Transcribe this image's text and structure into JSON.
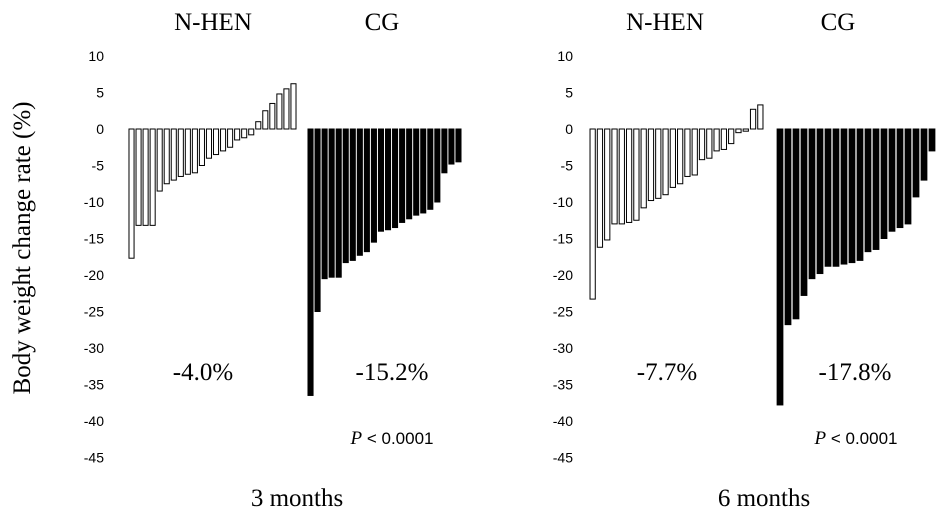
{
  "ylabel": "Body weight change rate (%)",
  "chart_data": [
    {
      "type": "bar",
      "xlabel": "3 months",
      "ylim": [
        -45,
        10
      ],
      "yticks": [
        10,
        5,
        0,
        -5,
        -10,
        -15,
        -20,
        -25,
        -30,
        -35,
        -40,
        -45
      ],
      "groups": [
        {
          "name": "N-HEN",
          "fill": "#ffffff",
          "stroke": "#000000",
          "mean_label": "-4.0%",
          "values": [
            -17.7,
            -13.2,
            -13.2,
            -13.2,
            -8.5,
            -7.5,
            -7.0,
            -6.5,
            -6.2,
            -6.0,
            -5.0,
            -4.0,
            -3.5,
            -3.0,
            -2.5,
            -1.5,
            -1.2,
            -0.8,
            1.0,
            2.5,
            3.5,
            4.8,
            5.5,
            6.2
          ]
        },
        {
          "name": "CG",
          "fill": "#000000",
          "stroke": "#000000",
          "mean_label": "-15.2%",
          "values": [
            -36.5,
            -25.0,
            -20.5,
            -20.3,
            -20.3,
            -18.3,
            -18.0,
            -17.3,
            -16.8,
            -15.5,
            -14.0,
            -13.8,
            -13.5,
            -12.8,
            -12.3,
            -11.8,
            -11.5,
            -11.0,
            -10.0,
            -6.0,
            -4.8,
            -4.5
          ]
        }
      ],
      "p_value": {
        "italic": "P",
        "text": " < 0.0001"
      }
    },
    {
      "type": "bar",
      "xlabel": "6 months",
      "ylim": [
        -45,
        10
      ],
      "yticks": [
        10,
        5,
        0,
        -5,
        -10,
        -15,
        -20,
        -25,
        -30,
        -35,
        -40,
        -45
      ],
      "groups": [
        {
          "name": "N-HEN",
          "fill": "#ffffff",
          "stroke": "#000000",
          "mean_label": "-7.7%",
          "values": [
            -23.3,
            -16.2,
            -15.2,
            -13.0,
            -13.0,
            -12.8,
            -12.5,
            -10.8,
            -9.8,
            -9.5,
            -9.0,
            -8.0,
            -7.5,
            -6.5,
            -6.3,
            -4.2,
            -4.0,
            -3.0,
            -2.8,
            -2.0,
            -0.5,
            -0.3,
            2.7,
            3.3
          ]
        },
        {
          "name": "CG",
          "fill": "#000000",
          "stroke": "#000000",
          "mean_label": "-17.8%",
          "values": [
            -37.8,
            -26.8,
            -26.0,
            -22.8,
            -20.5,
            -19.8,
            -18.8,
            -18.8,
            -18.5,
            -18.3,
            -18.0,
            -16.8,
            -16.5,
            -15.0,
            -14.0,
            -13.5,
            -13.0,
            -9.3,
            -7.0,
            -3.0
          ]
        }
      ],
      "p_value": {
        "italic": "P",
        "text": " < 0.0001"
      }
    }
  ]
}
